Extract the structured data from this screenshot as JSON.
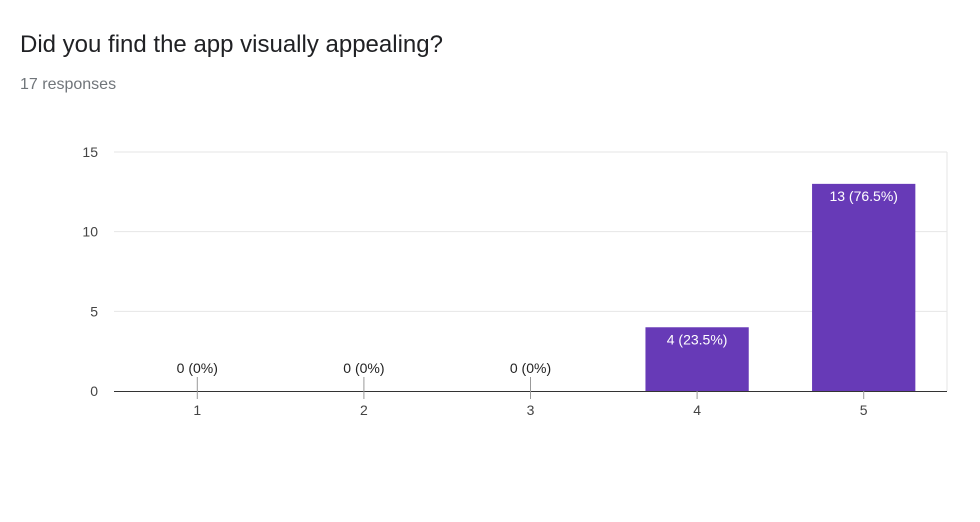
{
  "form": {
    "question": "Did you find the app visually appealing?",
    "responses": "17 responses"
  },
  "chart_data": {
    "type": "bar",
    "title": "",
    "xlabel": "",
    "ylabel": "",
    "categories": [
      "1",
      "2",
      "3",
      "4",
      "5"
    ],
    "values": [
      0,
      0,
      0,
      4,
      13
    ],
    "data_labels": [
      "0 (0%)",
      "0 (0%)",
      "0 (0%)",
      "4 (23.5%)",
      "13 (76.5%)"
    ],
    "yticks": [
      0,
      5,
      10,
      15
    ],
    "ylim": [
      0,
      15
    ],
    "grid": true,
    "bar_color": "#673ab7",
    "legend": "none"
  }
}
